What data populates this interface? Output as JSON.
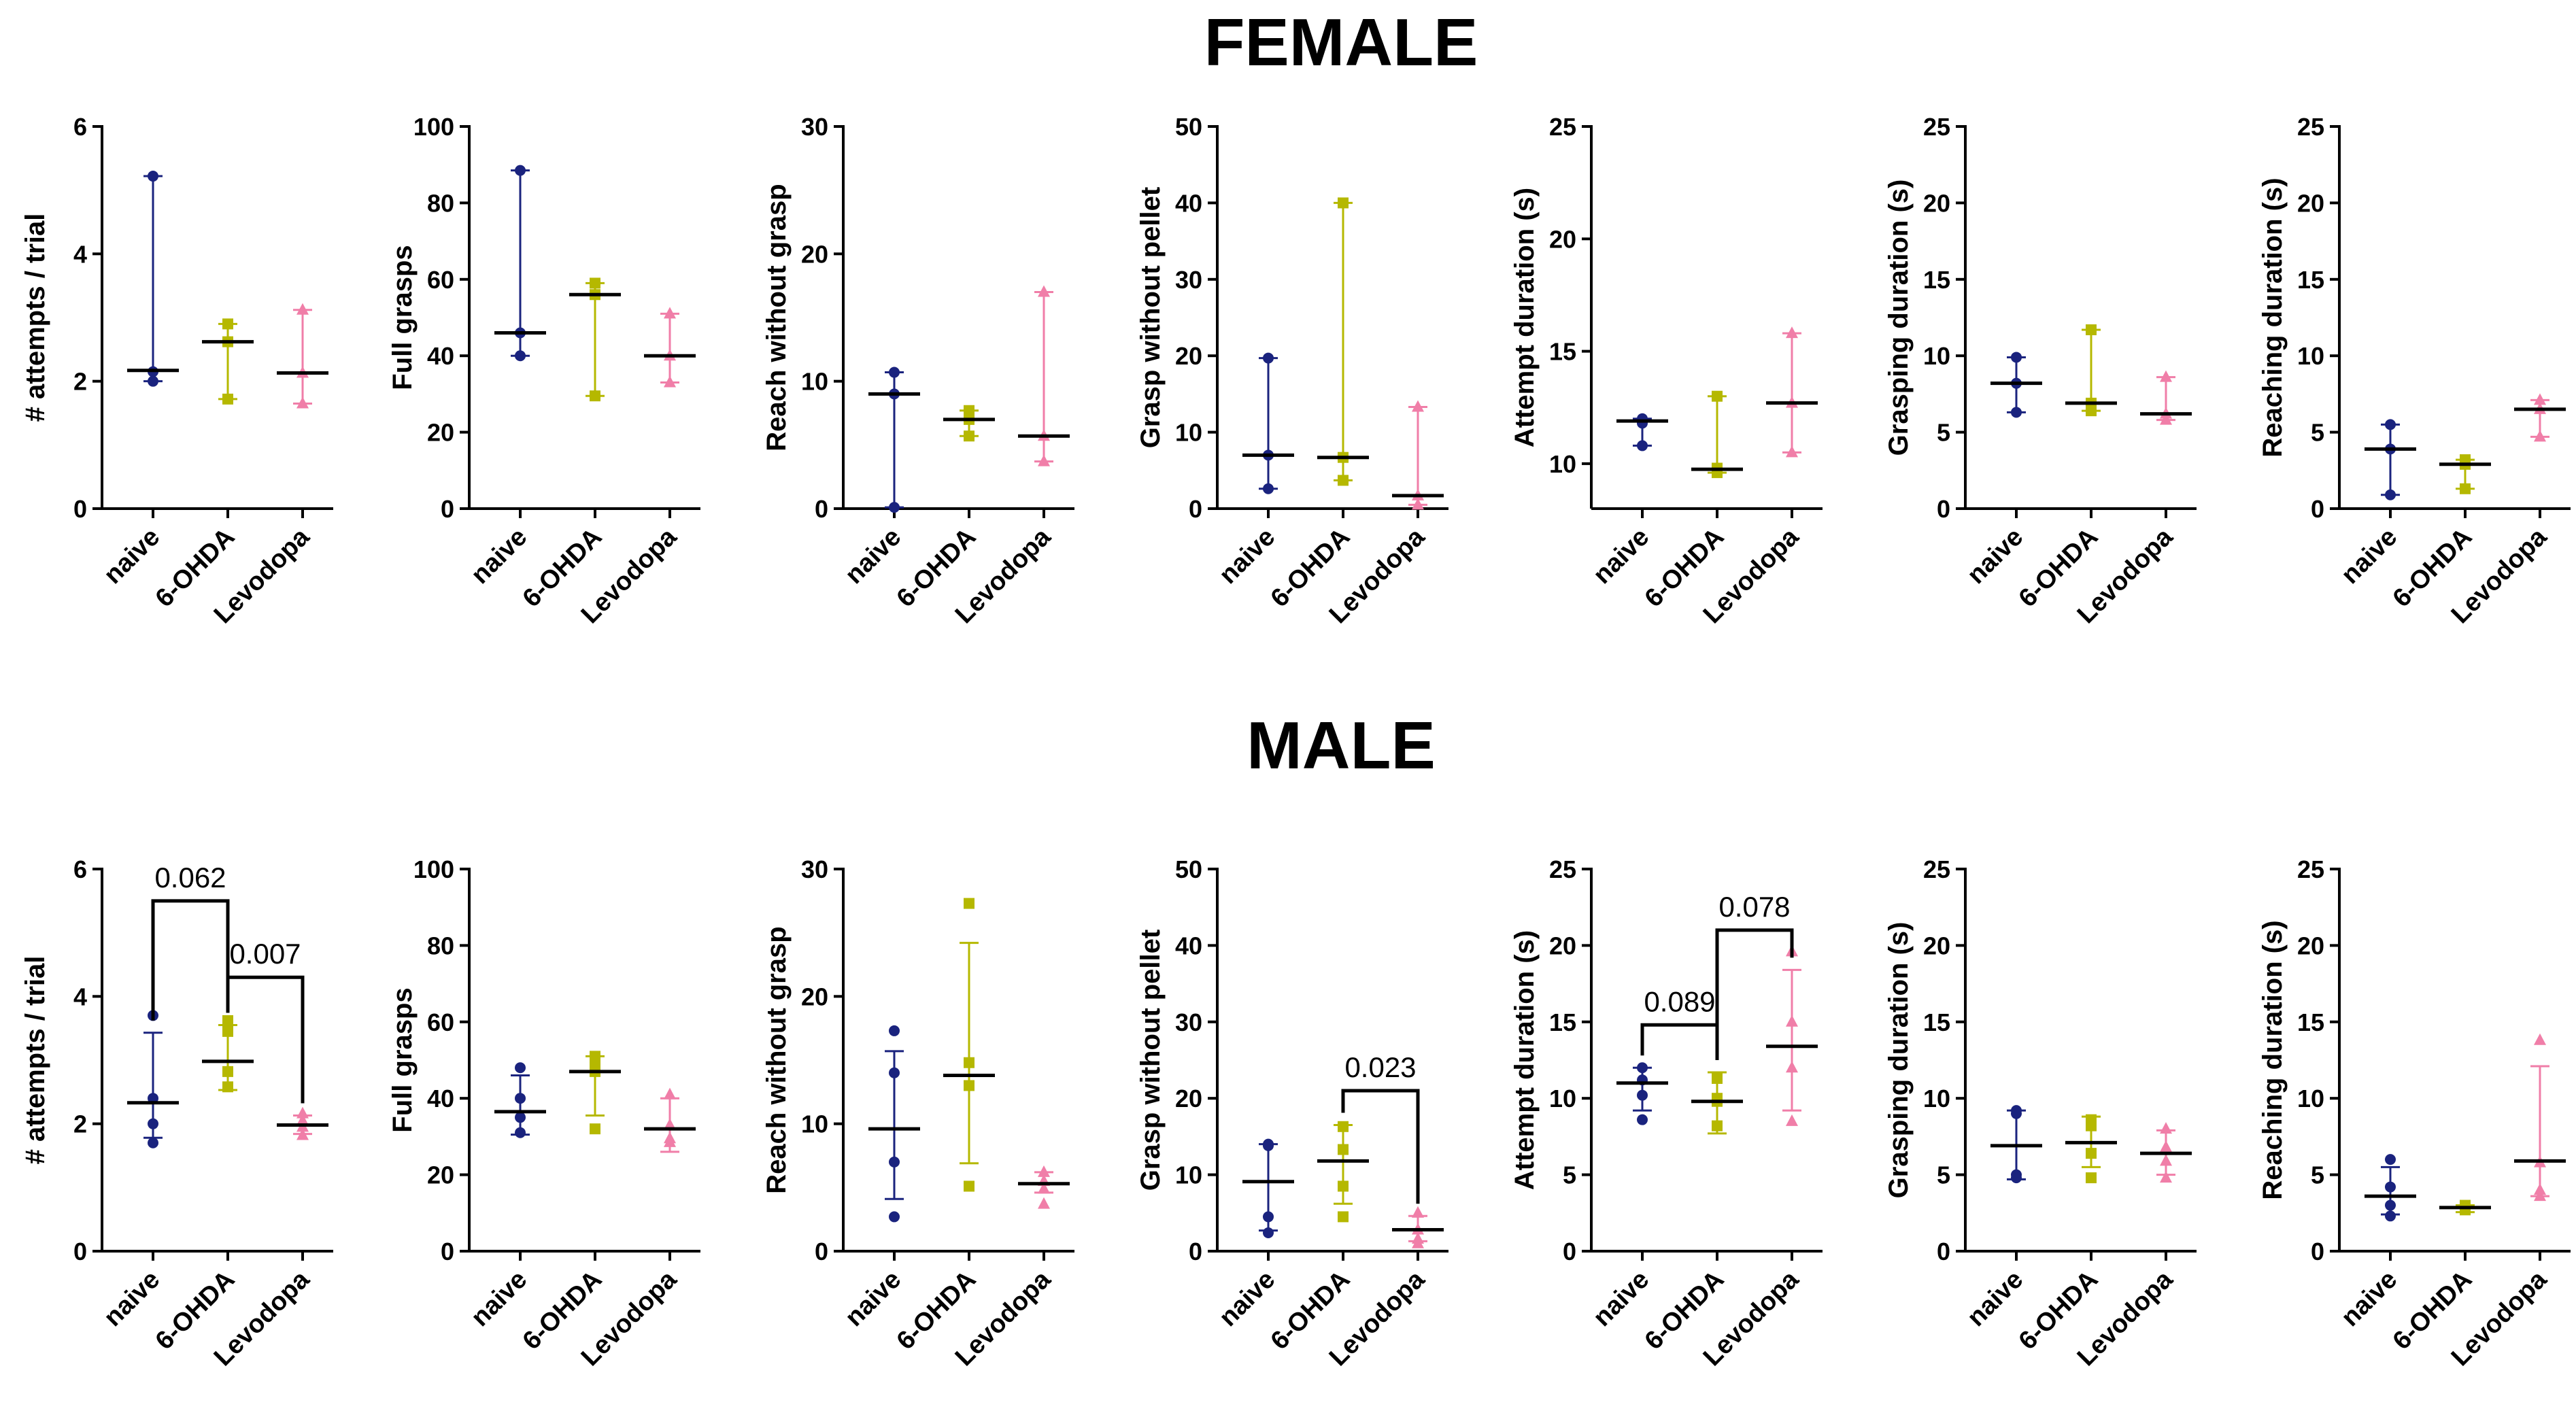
{
  "sections": [
    {
      "id": "female",
      "title": "FEMALE"
    },
    {
      "id": "male",
      "title": "MALE"
    }
  ],
  "colors": {
    "naive": "#1a237e",
    "6-OHDA": "#b5b800",
    "Levodopa": "#f07ea8",
    "axis": "#000000"
  },
  "chart_data": [
    {
      "type": "scatter",
      "section": "female",
      "ylabel": "# attempts / trial",
      "ylim": [
        0,
        6
      ],
      "yticks": [
        0,
        2,
        4,
        6
      ],
      "categories": [
        "naive",
        "6-OHDA",
        "Levodopa"
      ],
      "groups": [
        {
          "name": "naive",
          "points": [
            5.22,
            2.15,
            2.0
          ],
          "center": 2.17,
          "lo": 2.0,
          "hi": 5.22
        },
        {
          "name": "6-OHDA",
          "points": [
            2.9,
            2.62,
            1.72
          ],
          "center": 2.62,
          "lo": 1.72,
          "hi": 2.9
        },
        {
          "name": "Levodopa",
          "points": [
            3.12,
            2.13,
            1.65
          ],
          "center": 2.13,
          "lo": 1.65,
          "hi": 3.12
        }
      ],
      "stats": []
    },
    {
      "type": "scatter",
      "section": "female",
      "ylabel": "Full grasps",
      "ylim": [
        0,
        100
      ],
      "yticks": [
        0,
        20,
        40,
        60,
        80,
        100
      ],
      "categories": [
        "naive",
        "6-OHDA",
        "Levodopa"
      ],
      "groups": [
        {
          "name": "naive",
          "points": [
            88.5,
            46.0,
            40.0
          ],
          "center": 46.0,
          "lo": 40.0,
          "hi": 88.5
        },
        {
          "name": "6-OHDA",
          "points": [
            59.0,
            56.0,
            29.5
          ],
          "center": 56.0,
          "lo": 29.5,
          "hi": 59.0
        },
        {
          "name": "Levodopa",
          "points": [
            51.0,
            40.0,
            33.0
          ],
          "center": 40.0,
          "lo": 33.0,
          "hi": 51.0
        }
      ],
      "stats": []
    },
    {
      "type": "scatter",
      "section": "female",
      "ylabel": "Reach without grasp",
      "ylim": [
        0,
        30
      ],
      "yticks": [
        0,
        10,
        20,
        30
      ],
      "categories": [
        "naive",
        "6-OHDA",
        "Levodopa"
      ],
      "groups": [
        {
          "name": "naive",
          "points": [
            10.7,
            9.0,
            0.1
          ],
          "center": 9.0,
          "lo": 0.1,
          "hi": 10.7
        },
        {
          "name": "6-OHDA",
          "points": [
            7.7,
            7.0,
            5.7
          ],
          "center": 7.0,
          "lo": 5.7,
          "hi": 7.7
        },
        {
          "name": "Levodopa",
          "points": [
            17.0,
            5.7,
            3.7
          ],
          "center": 5.7,
          "lo": 3.7,
          "hi": 17.0
        }
      ],
      "stats": []
    },
    {
      "type": "scatter",
      "section": "female",
      "ylabel": "Grasp without pellet",
      "ylim": [
        0,
        50
      ],
      "yticks": [
        0,
        10,
        20,
        30,
        40,
        50
      ],
      "categories": [
        "naive",
        "6-OHDA",
        "Levodopa"
      ],
      "groups": [
        {
          "name": "naive",
          "points": [
            19.7,
            7.0,
            2.6
          ],
          "center": 7.0,
          "lo": 2.6,
          "hi": 19.7
        },
        {
          "name": "6-OHDA",
          "points": [
            40.0,
            6.7,
            3.7
          ],
          "center": 6.7,
          "lo": 3.7,
          "hi": 40.0
        },
        {
          "name": "Levodopa",
          "points": [
            13.3,
            1.7,
            0.5
          ],
          "center": 1.7,
          "lo": 0.5,
          "hi": 13.3
        }
      ],
      "stats": []
    },
    {
      "type": "scatter",
      "section": "female",
      "ylabel": "Attempt duration (s)",
      "ylim": [
        8,
        25
      ],
      "yticks": [
        10,
        15,
        20,
        25
      ],
      "categories": [
        "naive",
        "6-OHDA",
        "Levodopa"
      ],
      "groups": [
        {
          "name": "naive",
          "points": [
            12.0,
            11.8,
            10.8
          ],
          "center": 11.9,
          "lo": 10.8,
          "hi": 12.0
        },
        {
          "name": "6-OHDA",
          "points": [
            13.0,
            9.8,
            9.6
          ],
          "center": 9.75,
          "lo": 9.6,
          "hi": 13.0
        },
        {
          "name": "Levodopa",
          "points": [
            15.8,
            12.7,
            10.5
          ],
          "center": 12.7,
          "lo": 10.5,
          "hi": 15.8
        }
      ],
      "stats": []
    },
    {
      "type": "scatter",
      "section": "female",
      "ylabel": "Grasping duration (s)",
      "ylim": [
        0,
        25
      ],
      "yticks": [
        0,
        5,
        10,
        15,
        20,
        25
      ],
      "categories": [
        "naive",
        "6-OHDA",
        "Levodopa"
      ],
      "groups": [
        {
          "name": "naive",
          "points": [
            9.9,
            8.2,
            6.3
          ],
          "center": 8.2,
          "lo": 6.3,
          "hi": 9.9
        },
        {
          "name": "6-OHDA",
          "points": [
            11.7,
            6.9,
            6.4
          ],
          "center": 6.9,
          "lo": 6.4,
          "hi": 11.7
        },
        {
          "name": "Levodopa",
          "points": [
            8.6,
            6.2,
            5.8
          ],
          "center": 6.2,
          "lo": 5.8,
          "hi": 8.6
        }
      ],
      "stats": []
    },
    {
      "type": "scatter",
      "section": "female",
      "ylabel": "Reaching duration (s)",
      "ylim": [
        0,
        25
      ],
      "yticks": [
        0,
        5,
        10,
        15,
        20,
        25
      ],
      "categories": [
        "naive",
        "6-OHDA",
        "Levodopa"
      ],
      "groups": [
        {
          "name": "naive",
          "points": [
            5.5,
            3.9,
            0.9
          ],
          "center": 3.9,
          "lo": 0.9,
          "hi": 5.5
        },
        {
          "name": "6-OHDA",
          "points": [
            3.2,
            2.9,
            1.3
          ],
          "center": 2.9,
          "lo": 1.3,
          "hi": 3.2
        },
        {
          "name": "Levodopa",
          "points": [
            7.1,
            6.5,
            4.7
          ],
          "center": 6.5,
          "lo": 4.7,
          "hi": 7.1
        }
      ],
      "stats": []
    },
    {
      "type": "scatter",
      "section": "male",
      "ylabel": "# attempts / trial",
      "ylim": [
        0,
        6
      ],
      "yticks": [
        0,
        2,
        4,
        6
      ],
      "categories": [
        "naive",
        "6-OHDA",
        "Levodopa"
      ],
      "groups": [
        {
          "name": "naive",
          "points": [
            3.7,
            2.4,
            2.0,
            1.7
          ],
          "center": 2.33,
          "lo": 1.78,
          "hi": 3.43
        },
        {
          "name": "6-OHDA",
          "points": [
            3.62,
            3.45,
            2.82,
            2.58
          ],
          "center": 2.98,
          "lo": 2.53,
          "hi": 3.55
        },
        {
          "name": "Levodopa",
          "points": [
            2.16,
            2.05,
            1.95,
            1.82
          ],
          "center": 1.98,
          "lo": 1.84,
          "hi": 2.13
        }
      ],
      "stats": [
        {
          "from": 0,
          "to": 1,
          "label": "0.062",
          "y": 5.5
        },
        {
          "from": 1,
          "to": 2,
          "label": "0.007",
          "y": 4.3
        }
      ]
    },
    {
      "type": "scatter",
      "section": "male",
      "ylabel": "Full grasps",
      "ylim": [
        0,
        100
      ],
      "yticks": [
        0,
        20,
        40,
        60,
        80,
        100
      ],
      "categories": [
        "naive",
        "6-OHDA",
        "Levodopa"
      ],
      "groups": [
        {
          "name": "naive",
          "points": [
            48.0,
            40.0,
            35.0,
            31.0
          ],
          "center": 36.5,
          "lo": 30.5,
          "hi": 46.0
        },
        {
          "name": "6-OHDA",
          "points": [
            51.0,
            49.0,
            47.0,
            32.0
          ],
          "center": 47.0,
          "lo": 35.5,
          "hi": 51.0
        },
        {
          "name": "Levodopa",
          "points": [
            41.0,
            33.0,
            29.5,
            28.5
          ],
          "center": 32.0,
          "lo": 26.0,
          "hi": 40.0
        }
      ],
      "stats": []
    },
    {
      "type": "scatter",
      "section": "male",
      "ylabel": "Reach without grasp",
      "ylim": [
        0,
        30
      ],
      "yticks": [
        0,
        10,
        20,
        30
      ],
      "categories": [
        "naive",
        "6-OHDA",
        "Levodopa"
      ],
      "groups": [
        {
          "name": "naive",
          "points": [
            17.3,
            14.0,
            7.0,
            2.7
          ],
          "center": 9.6,
          "lo": 4.1,
          "hi": 15.7
        },
        {
          "name": "6-OHDA",
          "points": [
            27.3,
            14.8,
            13.0,
            5.1
          ],
          "center": 13.8,
          "lo": 6.9,
          "hi": 24.2
        },
        {
          "name": "Levodopa",
          "points": [
            6.2,
            5.5,
            4.9,
            3.7
          ],
          "center": 5.3,
          "lo": 4.6,
          "hi": 6.2
        }
      ],
      "stats": []
    },
    {
      "type": "scatter",
      "section": "male",
      "ylabel": "Grasp without pellet",
      "ylim": [
        0,
        50
      ],
      "yticks": [
        0,
        10,
        20,
        30,
        40,
        50
      ],
      "categories": [
        "naive",
        "6-OHDA",
        "Levodopa"
      ],
      "groups": [
        {
          "name": "naive",
          "points": [
            14.0,
            13.8,
            4.5,
            2.4
          ],
          "center": 9.1,
          "lo": 2.7,
          "hi": 14.0
        },
        {
          "name": "6-OHDA",
          "points": [
            16.3,
            13.3,
            8.5,
            4.5
          ],
          "center": 11.8,
          "lo": 6.2,
          "hi": 16.5
        },
        {
          "name": "Levodopa",
          "points": [
            5.0,
            2.8,
            1.6,
            1.0
          ],
          "center": 2.8,
          "lo": 1.3,
          "hi": 4.6
        }
      ],
      "stats": [
        {
          "from": 1,
          "to": 2,
          "label": "0.023",
          "y": 21.0
        }
      ]
    },
    {
      "type": "scatter",
      "section": "male",
      "ylabel": "Attempt duration (s)",
      "ylim": [
        0,
        25
      ],
      "yticks": [
        0,
        5,
        10,
        15,
        20,
        25
      ],
      "categories": [
        "naive",
        "6-OHDA",
        "Levodopa"
      ],
      "groups": [
        {
          "name": "naive",
          "points": [
            12.0,
            11.2,
            10.2,
            8.6
          ],
          "center": 11.0,
          "lo": 9.2,
          "hi": 12.0
        },
        {
          "name": "6-OHDA",
          "points": [
            11.3,
            10.0,
            9.8,
            8.2
          ],
          "center": 9.8,
          "lo": 7.7,
          "hi": 11.7
        },
        {
          "name": "Levodopa",
          "points": [
            19.6,
            15.0,
            12.0,
            8.5
          ],
          "center": 13.4,
          "lo": 9.2,
          "hi": 18.4
        }
      ],
      "stats": [
        {
          "from": 0,
          "to": 1,
          "label": "0.089",
          "y": 14.8
        },
        {
          "from": 1,
          "to": 2,
          "label": "0.078",
          "y": 21.0
        }
      ]
    },
    {
      "type": "scatter",
      "section": "male",
      "ylabel": "Grasping duration (s)",
      "ylim": [
        0,
        25
      ],
      "yticks": [
        0,
        5,
        10,
        15,
        20,
        25
      ],
      "categories": [
        "naive",
        "6-OHDA",
        "Levodopa"
      ],
      "groups": [
        {
          "name": "naive",
          "points": [
            9.2,
            9.0,
            5.0,
            4.8
          ],
          "center": 6.9,
          "lo": 4.7,
          "hi": 9.2
        },
        {
          "name": "6-OHDA",
          "points": [
            8.6,
            8.2,
            6.4,
            4.8
          ],
          "center": 7.1,
          "lo": 5.5,
          "hi": 8.8
        },
        {
          "name": "Levodopa",
          "points": [
            8.0,
            6.8,
            5.9,
            4.8
          ],
          "center": 6.4,
          "lo": 5.0,
          "hi": 7.9
        }
      ],
      "stats": []
    },
    {
      "type": "scatter",
      "section": "male",
      "ylabel": "Reaching duration (s)",
      "ylim": [
        0,
        25
      ],
      "yticks": [
        0,
        5,
        10,
        15,
        20,
        25
      ],
      "categories": [
        "naive",
        "6-OHDA",
        "Levodopa"
      ],
      "groups": [
        {
          "name": "naive",
          "points": [
            6.0,
            4.2,
            3.0,
            2.3
          ],
          "center": 3.6,
          "lo": 2.4,
          "hi": 5.5
        },
        {
          "name": "6-OHDA",
          "points": [
            3.0,
            2.9,
            2.8,
            2.7
          ],
          "center": 2.85,
          "lo": 2.55,
          "hi": 3.0
        },
        {
          "name": "Levodopa",
          "points": [
            13.8,
            5.8,
            4.0,
            3.6
          ],
          "center": 5.9,
          "lo": 3.6,
          "hi": 12.1
        }
      ],
      "stats": []
    }
  ]
}
